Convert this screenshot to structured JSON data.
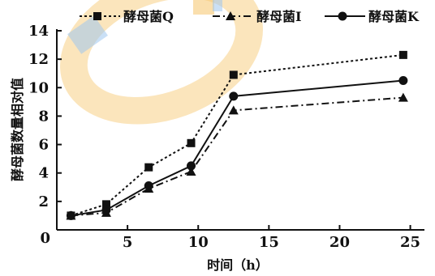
{
  "chart_data": {
    "type": "line",
    "xlabel": "时间（h）",
    "ylabel": "酵母菌数量相对值",
    "xlim": [
      0,
      26
    ],
    "ylim": [
      0,
      14
    ],
    "xticks": [
      0,
      5,
      10,
      15,
      20,
      25
    ],
    "yticks": [
      2,
      4,
      6,
      8,
      10,
      12,
      14
    ],
    "grid": false,
    "legend": "top",
    "series": [
      {
        "name": "酵母菌Q",
        "marker": "square",
        "dash": "dotted",
        "x": [
          1,
          3.5,
          6.5,
          9.5,
          12.5,
          24.5
        ],
        "y": [
          1.0,
          1.8,
          4.4,
          6.1,
          10.9,
          12.3
        ]
      },
      {
        "name": "酵母菌I",
        "marker": "triangle",
        "dash": "dash-dot",
        "x": [
          1,
          3.5,
          6.5,
          9.5,
          12.5,
          24.5
        ],
        "y": [
          1.0,
          1.2,
          2.9,
          4.1,
          8.4,
          9.3
        ]
      },
      {
        "name": "酵母菌K",
        "marker": "circle",
        "dash": "solid",
        "x": [
          1,
          3.5,
          6.5,
          9.5,
          12.5,
          24.5
        ],
        "y": [
          1.0,
          1.4,
          3.1,
          4.5,
          9.4,
          10.5
        ]
      }
    ]
  },
  "colors": {
    "line": "#111111",
    "watermark_orange": "#f6c56a",
    "watermark_blue": "#9fc6ef"
  }
}
